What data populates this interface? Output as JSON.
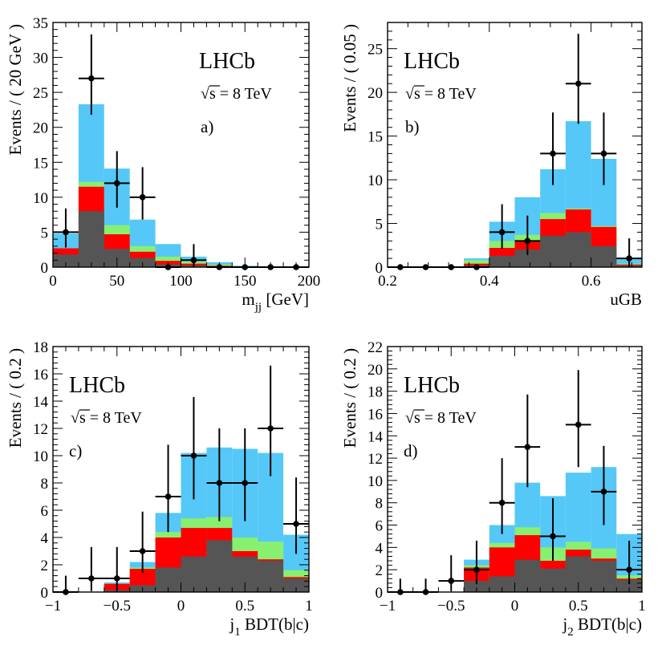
{
  "colors": {
    "cyan": "#55c8f8",
    "green": "#88f070",
    "red": "#ff0000",
    "gray": "#555555",
    "points": "#000000"
  },
  "chart_data": [
    {
      "type": "bar",
      "panel_label": "a)",
      "experiment": "LHCb",
      "energy": "√s = 8 TeV",
      "xlabel_main": "m",
      "xlabel_sub": "jj",
      "xlabel_rest": " [GeV]",
      "ylabel": "Events / ( 20 GeV )",
      "xlim": [
        0,
        200
      ],
      "ylim": [
        0,
        35
      ],
      "xticks": [
        0,
        50,
        100,
        150,
        200
      ],
      "yticks": [
        0,
        5,
        10,
        15,
        20,
        25,
        30,
        35
      ],
      "bin_edges": [
        0,
        20,
        40,
        60,
        80,
        100,
        120,
        140,
        160,
        180,
        200
      ],
      "stack": {
        "gray": [
          1.8,
          8.0,
          2.6,
          1.3,
          0.4,
          0.25,
          0.1,
          0.0,
          0.0,
          0.0
        ],
        "red": [
          2.7,
          11.5,
          4.7,
          2.2,
          0.9,
          0.5,
          0.2,
          0.05,
          0.0,
          0.0
        ],
        "green": [
          2.7,
          12.2,
          6.0,
          3.0,
          1.5,
          0.8,
          0.35,
          0.1,
          0.0,
          0.0
        ],
        "cyan": [
          4.8,
          23.3,
          14.1,
          6.8,
          3.3,
          1.5,
          0.7,
          0.2,
          0.05,
          0.0
        ]
      },
      "points": {
        "x": [
          10,
          30,
          50,
          70,
          90,
          110,
          130,
          150,
          170,
          190
        ],
        "y": [
          5,
          27,
          12,
          10,
          0,
          1,
          0,
          0,
          0,
          0
        ],
        "yerr_low": [
          2.2,
          5.2,
          3.5,
          3.2,
          0,
          1.0,
          0,
          0,
          0,
          0
        ],
        "yerr_high": [
          3.4,
          6.3,
          4.6,
          4.3,
          0,
          2.3,
          0,
          0,
          0,
          0
        ]
      }
    },
    {
      "type": "bar",
      "panel_label": "b)",
      "experiment": "LHCb",
      "energy": "√s = 8 TeV",
      "xlabel_main": "uGB",
      "xlabel_sub": "",
      "xlabel_rest": "",
      "ylabel": "Events / ( 0.05 )",
      "xlim": [
        0.2,
        0.7
      ],
      "ylim": [
        0,
        28
      ],
      "xticks": [
        0.2,
        0.4,
        0.6
      ],
      "yticks": [
        0,
        5,
        10,
        15,
        20,
        25
      ],
      "bin_edges": [
        0.2,
        0.25,
        0.3,
        0.35,
        0.4,
        0.45,
        0.5,
        0.55,
        0.6,
        0.65,
        0.7
      ],
      "stack": {
        "gray": [
          0,
          0,
          0,
          0.2,
          1.3,
          2.0,
          3.6,
          4.0,
          2.4,
          0.2
        ],
        "red": [
          0,
          0,
          0,
          0.4,
          2.2,
          2.9,
          5.5,
          6.6,
          4.6,
          0.3
        ],
        "green": [
          0,
          0,
          0,
          0.8,
          3.0,
          3.7,
          6.2,
          6.7,
          4.7,
          0.4
        ],
        "cyan": [
          0,
          0,
          0,
          1.0,
          5.2,
          8.0,
          11.2,
          16.7,
          12.4,
          0.9
        ]
      },
      "points": {
        "x": [
          0.225,
          0.275,
          0.325,
          0.375,
          0.425,
          0.475,
          0.525,
          0.575,
          0.625,
          0.675
        ],
        "y": [
          0,
          0,
          0,
          0,
          4,
          3,
          13,
          21,
          13,
          1
        ],
        "yerr_low": [
          0,
          0,
          0,
          0,
          1.9,
          1.6,
          3.6,
          4.6,
          3.6,
          1.0
        ],
        "yerr_high": [
          0,
          0,
          0,
          0,
          3.2,
          2.9,
          4.7,
          5.7,
          4.7,
          2.3
        ]
      }
    },
    {
      "type": "bar",
      "panel_label": "c)",
      "experiment": "LHCb",
      "energy": "√s = 8 TeV",
      "xlabel_main": "j",
      "xlabel_sub": "1",
      "xlabel_rest": " BDT(b|c)",
      "ylabel": "Events / ( 0.2 )",
      "xlim": [
        -1,
        1
      ],
      "ylim": [
        0,
        18
      ],
      "xticks": [
        -1,
        -0.5,
        0,
        0.5,
        1
      ],
      "yticks": [
        0,
        2,
        4,
        6,
        8,
        10,
        12,
        14,
        16,
        18
      ],
      "bin_edges": [
        -1,
        -0.8,
        -0.6,
        -0.4,
        -0.2,
        0,
        0.2,
        0.4,
        0.6,
        0.8,
        1
      ],
      "stack": {
        "gray": [
          0,
          0,
          0.15,
          0.5,
          1.8,
          2.6,
          3.8,
          2.6,
          2.3,
          1.0
        ],
        "red": [
          0,
          0,
          0.6,
          1.7,
          4.0,
          4.7,
          4.7,
          3.0,
          2.4,
          1.1
        ],
        "green": [
          0,
          0,
          0.6,
          1.8,
          4.4,
          5.4,
          5.5,
          4.0,
          3.7,
          1.6
        ],
        "cyan": [
          0,
          0,
          0.7,
          2.2,
          5.8,
          10.2,
          10.6,
          10.5,
          10.2,
          4.2
        ]
      },
      "points": {
        "x": [
          -0.9,
          -0.7,
          -0.5,
          -0.3,
          -0.1,
          0.1,
          0.3,
          0.5,
          0.7,
          0.9
        ],
        "y": [
          0,
          1,
          1,
          3,
          7,
          10,
          8,
          8,
          12,
          5
        ],
        "yerr_low": [
          0,
          0.9,
          0.9,
          1.6,
          2.6,
          3.2,
          2.8,
          2.8,
          3.5,
          2.2
        ],
        "yerr_high": [
          1.2,
          2.3,
          2.3,
          2.9,
          3.8,
          4.3,
          4.0,
          4.0,
          4.6,
          3.4
        ]
      }
    },
    {
      "type": "bar",
      "panel_label": "d)",
      "experiment": "LHCb",
      "energy": "√s = 8 TeV",
      "xlabel_main": "j",
      "xlabel_sub": "2",
      "xlabel_rest": " BDT(b|c)",
      "ylabel": "Events / ( 0.2 )",
      "xlim": [
        -1,
        1
      ],
      "ylim": [
        0,
        22
      ],
      "xticks": [
        -1,
        -0.5,
        0,
        0.5,
        1
      ],
      "yticks": [
        0,
        2,
        4,
        6,
        8,
        10,
        12,
        14,
        16,
        18,
        20,
        22
      ],
      "bin_edges": [
        -1,
        -0.8,
        -0.6,
        -0.4,
        -0.2,
        0,
        0.2,
        0.4,
        0.6,
        0.8,
        1
      ],
      "stack": {
        "gray": [
          0,
          0,
          0,
          1.0,
          1.4,
          2.9,
          2.1,
          3.2,
          2.8,
          1.1
        ],
        "red": [
          0,
          0,
          0,
          2.2,
          4.0,
          5.1,
          2.8,
          3.8,
          3.0,
          1.2
        ],
        "green": [
          0,
          0,
          0,
          2.4,
          4.4,
          5.8,
          4.0,
          4.5,
          3.9,
          1.5
        ],
        "cyan": [
          0,
          0,
          0,
          2.9,
          6.0,
          9.8,
          8.6,
          10.7,
          11.2,
          5.2
        ]
      },
      "points": {
        "x": [
          -0.9,
          -0.7,
          -0.5,
          -0.3,
          -0.1,
          0.1,
          0.3,
          0.5,
          0.7,
          0.9
        ],
        "y": [
          0,
          0,
          1,
          2,
          8,
          13,
          5,
          15,
          9,
          2
        ],
        "yerr_low": [
          0,
          0,
          0.9,
          1.3,
          2.8,
          3.6,
          2.2,
          3.8,
          3.0,
          1.3
        ],
        "yerr_high": [
          1.2,
          1.2,
          2.3,
          2.6,
          4.0,
          4.7,
          3.4,
          4.9,
          4.1,
          2.6
        ]
      }
    }
  ]
}
